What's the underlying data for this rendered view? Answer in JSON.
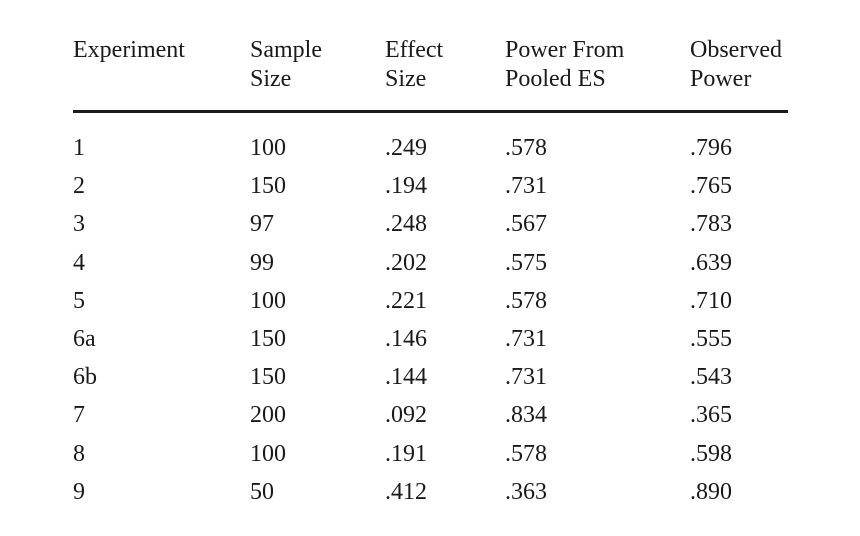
{
  "table": {
    "headers": [
      [
        "Experiment"
      ],
      [
        "Sample",
        "Size"
      ],
      [
        "Effect",
        "Size"
      ],
      [
        "Power From",
        "Pooled ES"
      ],
      [
        "Observed",
        "Power"
      ]
    ],
    "rows": [
      [
        "1",
        "100",
        ".249",
        ".578",
        ".796"
      ],
      [
        "2",
        "150",
        ".194",
        ".731",
        ".765"
      ],
      [
        "3",
        "97",
        ".248",
        ".567",
        ".783"
      ],
      [
        "4",
        "99",
        ".202",
        ".575",
        ".639"
      ],
      [
        "5",
        "100",
        ".221",
        ".578",
        ".710"
      ],
      [
        "6a",
        "150",
        ".146",
        ".731",
        ".555"
      ],
      [
        "6b",
        "150",
        ".144",
        ".731",
        ".543"
      ],
      [
        "7",
        "200",
        ".092",
        ".834",
        ".365"
      ],
      [
        "8",
        "100",
        ".191",
        ".578",
        ".598"
      ],
      [
        "9",
        "50",
        ".412",
        ".363",
        ".890"
      ]
    ]
  }
}
